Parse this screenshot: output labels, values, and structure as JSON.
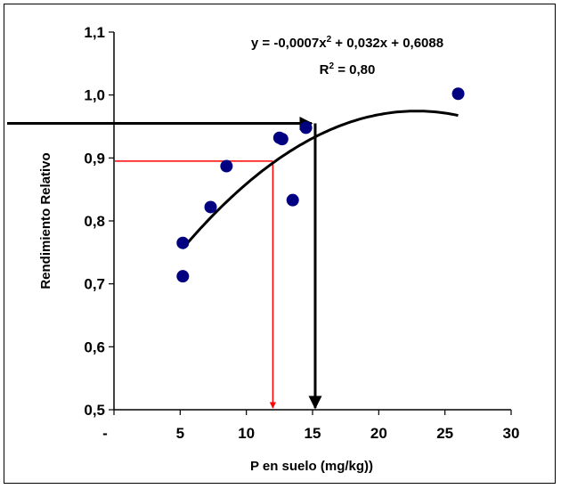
{
  "chart_data": {
    "type": "scatter",
    "title": "",
    "xlabel": "P en suelo (mg/kg))",
    "ylabel": "Rendimiento Relativo",
    "xlim": [
      0,
      30
    ],
    "ylim": [
      0.5,
      1.1
    ],
    "x_tick_labels": [
      "-",
      "5",
      "10",
      "15",
      "20",
      "25",
      "30"
    ],
    "y_tick_labels": [
      "0,5",
      "0,6",
      "0,7",
      "0,8",
      "0,9",
      "1,0",
      "1,1"
    ],
    "equation_line1_prefix": "y = -0,0007x",
    "equation_line1_suffix": " + 0,032x + 0,6088",
    "r2_prefix": "R",
    "r2_suffix": " = 0,80",
    "superscript": "2",
    "points": [
      {
        "x": 5.2,
        "y": 0.765
      },
      {
        "x": 5.2,
        "y": 0.712
      },
      {
        "x": 7.3,
        "y": 0.822
      },
      {
        "x": 8.5,
        "y": 0.887
      },
      {
        "x": 12.5,
        "y": 0.932
      },
      {
        "x": 12.7,
        "y": 0.93
      },
      {
        "x": 13.5,
        "y": 0.833
      },
      {
        "x": 14.5,
        "y": 0.948
      },
      {
        "x": 26.0,
        "y": 1.002
      }
    ],
    "fit": {
      "a": -0.0007,
      "b": 0.032,
      "c": 0.6088,
      "x_range": [
        5.2,
        26.0
      ],
      "r2": 0.8
    },
    "reference_lines": [
      {
        "color": "#ff0000",
        "y": 0.895,
        "x": 12.0
      },
      {
        "color": "#000000",
        "y": 0.955,
        "x": 15.2
      }
    ],
    "grid": false,
    "legend": "none",
    "colors": {
      "points": "#000080",
      "fit": "#000000"
    }
  }
}
